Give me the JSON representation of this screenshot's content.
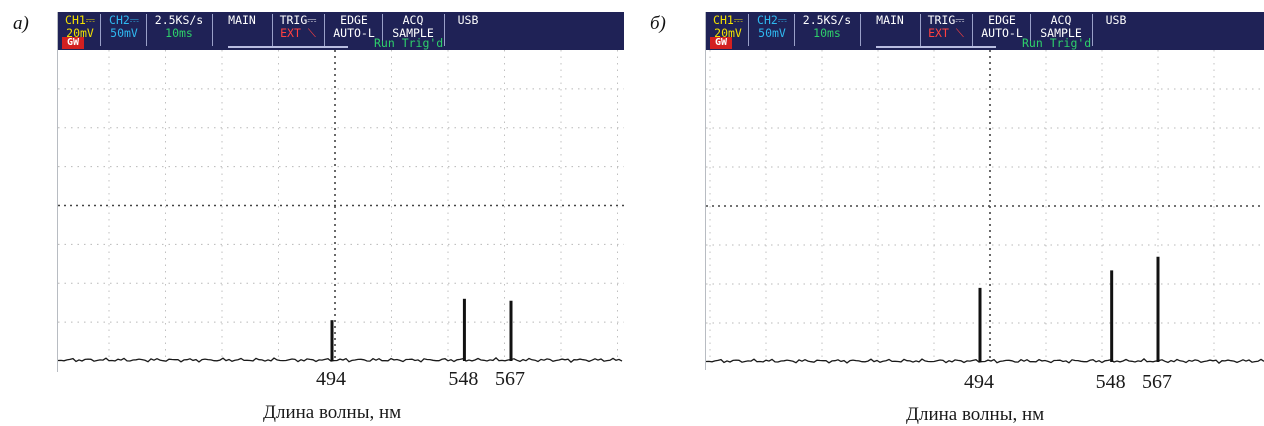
{
  "status_bar": {
    "ch1": {
      "name": "CH1",
      "value": "20mV",
      "color": "#f2e000"
    },
    "ch2": {
      "name": "CH2",
      "value": "50mV",
      "color": "#2fb8f0"
    },
    "sample_rate": {
      "rate": "2.5KS/s",
      "time": "10ms",
      "rate_color": "#ffffff",
      "time_color": "#2ecf6a"
    },
    "main": "MAIN",
    "trig": {
      "label": "TRIG",
      "source": "EXT",
      "source_color": "#ff4040"
    },
    "edge": {
      "label": "EDGE",
      "mode": "AUTO-L"
    },
    "acq": {
      "label": "ACQ",
      "mode": "SAMPLE"
    },
    "usb": "USB",
    "gw_badge": "GW",
    "run_status": "Run Trig'd"
  },
  "panels": [
    {
      "label": "а)"
    },
    {
      "label": "б)"
    }
  ],
  "chart_data": [
    {
      "type": "bar",
      "panel": "а)",
      "categories": [
        "494",
        "548",
        "567"
      ],
      "values": [
        1.05,
        1.6,
        1.55
      ],
      "xlabel": "Длина волны, нм",
      "ylabel": "",
      "grid": true
    },
    {
      "type": "bar",
      "panel": "б)",
      "categories": [
        "494",
        "548",
        "567"
      ],
      "values": [
        1.9,
        2.35,
        2.7
      ],
      "xlabel": "Длина волны, нм",
      "ylabel": "",
      "grid": true
    }
  ]
}
